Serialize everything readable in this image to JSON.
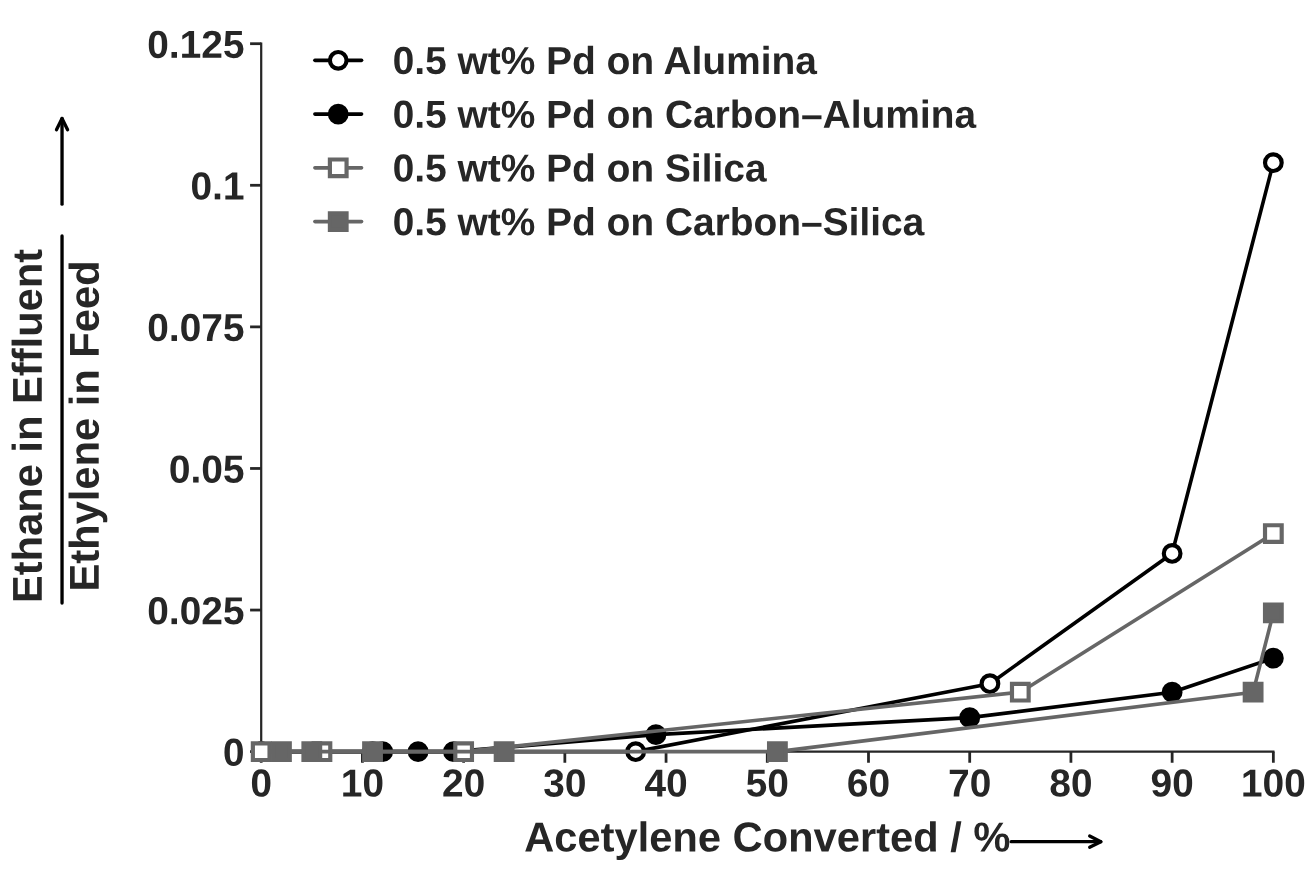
{
  "chart_data": {
    "type": "line",
    "xlabel": "Acetylene Converted / %",
    "ylabel": "Ethane in Effluent\nEthylene in Feed",
    "xlim": [
      0,
      100
    ],
    "xticks": [
      0,
      10,
      20,
      30,
      40,
      50,
      60,
      70,
      80,
      90,
      100
    ],
    "ylim": [
      0,
      0.125
    ],
    "yticks": [
      0,
      0.025,
      0.05,
      0.075,
      0.1,
      0.125
    ],
    "grid": false,
    "legend": "top left",
    "line_style": "solid",
    "series": [
      {
        "name": "0.5 wt% Pd on Alumina",
        "color": "#000000",
        "marker": "circle",
        "x": [
          0,
          11,
          37,
          72,
          90,
          100
        ],
        "values": [
          0,
          0,
          0,
          0.012,
          0.035,
          0.104
        ]
      },
      {
        "name": "0.5 wt% Pd on Carbon–Alumina",
        "color": "#000000",
        "marker": "circle",
        "x": [
          0,
          12,
          15.5,
          19,
          39,
          70,
          90,
          100
        ],
        "values": [
          0,
          0,
          0,
          0,
          0.003,
          0.006,
          0.0105,
          0.0165
        ]
      },
      {
        "name": "0.5 wt% Pd on Silica",
        "color": "#666666",
        "marker": "square",
        "x": [
          0,
          6,
          20,
          75,
          100
        ],
        "values": [
          0,
          0,
          0,
          0.0105,
          0.0385
        ]
      },
      {
        "name": "0.5 wt% Pd on Carbon–Silica",
        "color": "#666666",
        "marker": "square",
        "x": [
          2,
          5,
          11,
          24,
          51,
          98,
          100
        ],
        "values": [
          0,
          0,
          0,
          0,
          0,
          0.0105,
          0.0245
        ]
      }
    ]
  }
}
